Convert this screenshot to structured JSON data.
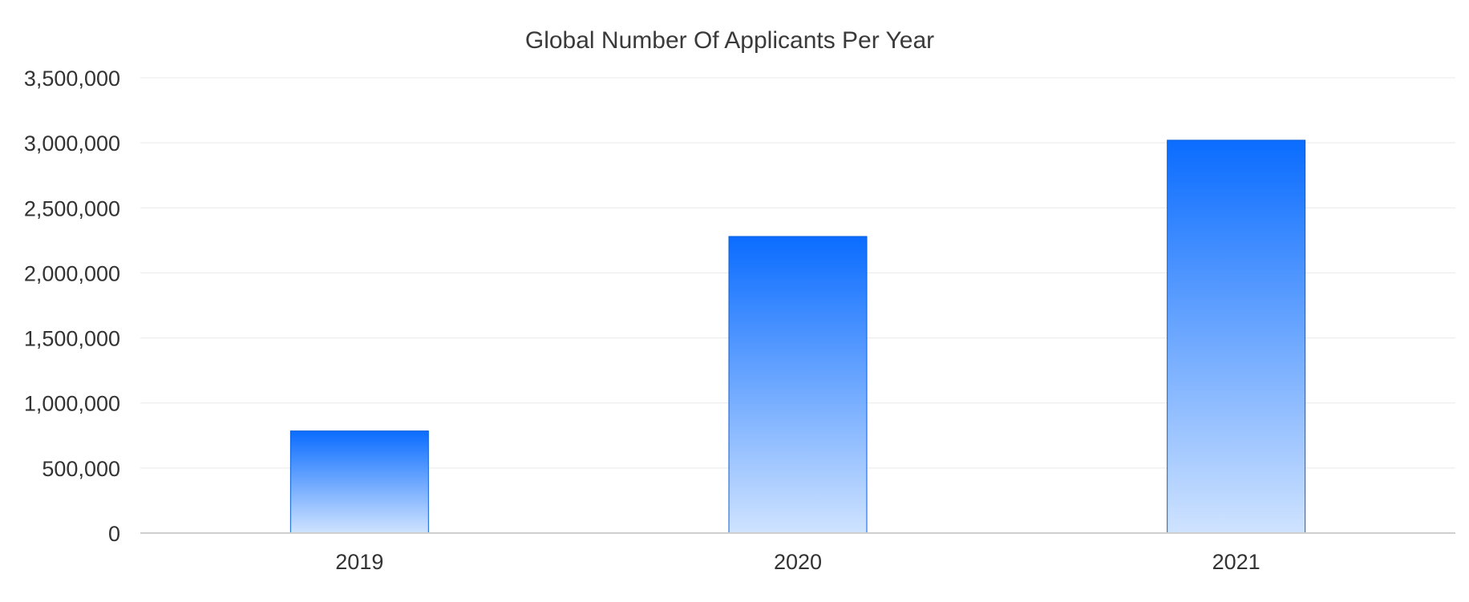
{
  "chart_data": {
    "type": "bar",
    "title": "Global Number Of Applicants Per Year",
    "xlabel": "",
    "ylabel": "",
    "categories": [
      "2019",
      "2020",
      "2021"
    ],
    "values": [
      785000,
      2280000,
      3020000
    ],
    "ylim": [
      0,
      3500000
    ],
    "y_ticks": [
      {
        "value": 0,
        "label": "0"
      },
      {
        "value": 500000,
        "label": "500,000"
      },
      {
        "value": 1000000,
        "label": "1,000,000"
      },
      {
        "value": 1500000,
        "label": "1,500,000"
      },
      {
        "value": 2000000,
        "label": "2,000,000"
      },
      {
        "value": 2500000,
        "label": "2,500,000"
      },
      {
        "value": 3000000,
        "label": "3,000,000"
      },
      {
        "value": 3500000,
        "label": "3,500,000"
      }
    ],
    "grid": true,
    "legend": "none",
    "colors": {
      "bar_top": "#0a6cff",
      "bar_bottom": "#cfe3ff",
      "bar_edge": "#0a5fd8",
      "grid": "#e9e9e9",
      "axis": "#cfcfcf",
      "text": "#333333"
    }
  }
}
